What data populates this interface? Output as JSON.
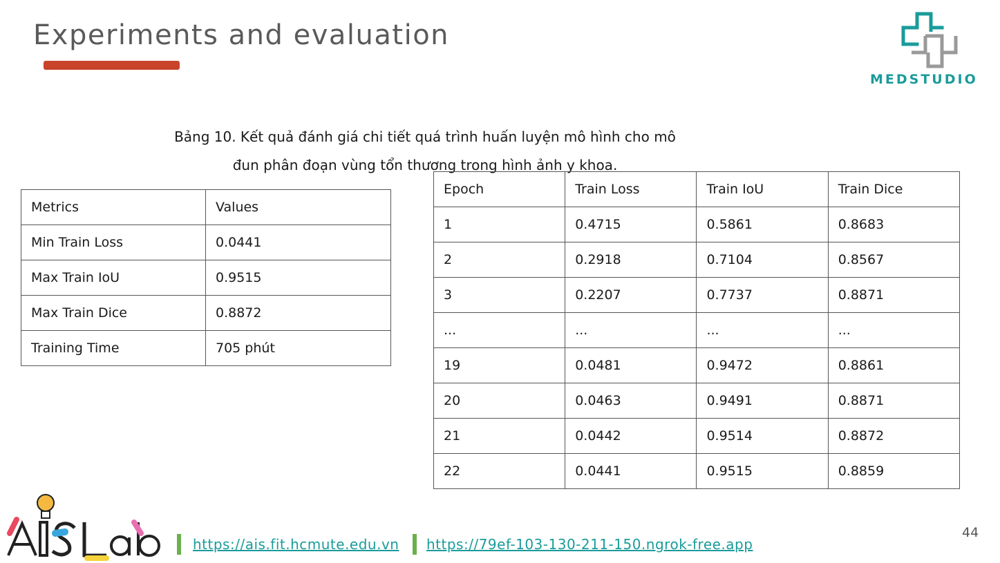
{
  "slide": {
    "title": "Experiments and evaluation",
    "page_number": "44",
    "accent_color": "#c9432b"
  },
  "brand": {
    "logo_text": "MEDSTUDIO",
    "logo_color": "#1a9b9b",
    "icon": "medical-cross-logo-icon"
  },
  "caption": {
    "line1": "Bảng 10. Kết quả đánh giá chi tiết quá trình huấn luyện mô hình cho mô",
    "line2": "đun phân đoạn vùng tổn thương trong hình ảnh y khoa."
  },
  "summary_table": {
    "rows": [
      [
        "Metrics",
        "Values"
      ],
      [
        "Min Train Loss",
        "0.0441"
      ],
      [
        "Max Train IoU",
        "0.9515"
      ],
      [
        "Max Train Dice",
        "0.8872"
      ],
      [
        "Training Time",
        "705 phút"
      ]
    ]
  },
  "epoch_table": {
    "rows": [
      [
        "Epoch",
        "Train Loss",
        "Train IoU",
        "Train Dice"
      ],
      [
        "1",
        "0.4715",
        "0.5861",
        "0.8683"
      ],
      [
        "2",
        "0.2918",
        "0.7104",
        "0.8567"
      ],
      [
        "3",
        "0.2207",
        "0.7737",
        "0.8871"
      ],
      [
        "...",
        "...",
        "...",
        "..."
      ],
      [
        "19",
        "0.0481",
        "0.9472",
        "0.8861"
      ],
      [
        "20",
        "0.0463",
        "0.9491",
        "0.8871"
      ],
      [
        "21",
        "0.0442",
        "0.9514",
        "0.8872"
      ],
      [
        "22",
        "0.0441",
        "0.9515",
        "0.8859"
      ]
    ]
  },
  "footer": {
    "lab_logo_text": "AISLab",
    "links": [
      "https://ais.fit.hcmute.edu.vn",
      "https://79ef-103-130-211-150.ngrok-free.app"
    ],
    "separator_color": "#6ab04c",
    "link_color": "#1a9b9b"
  }
}
